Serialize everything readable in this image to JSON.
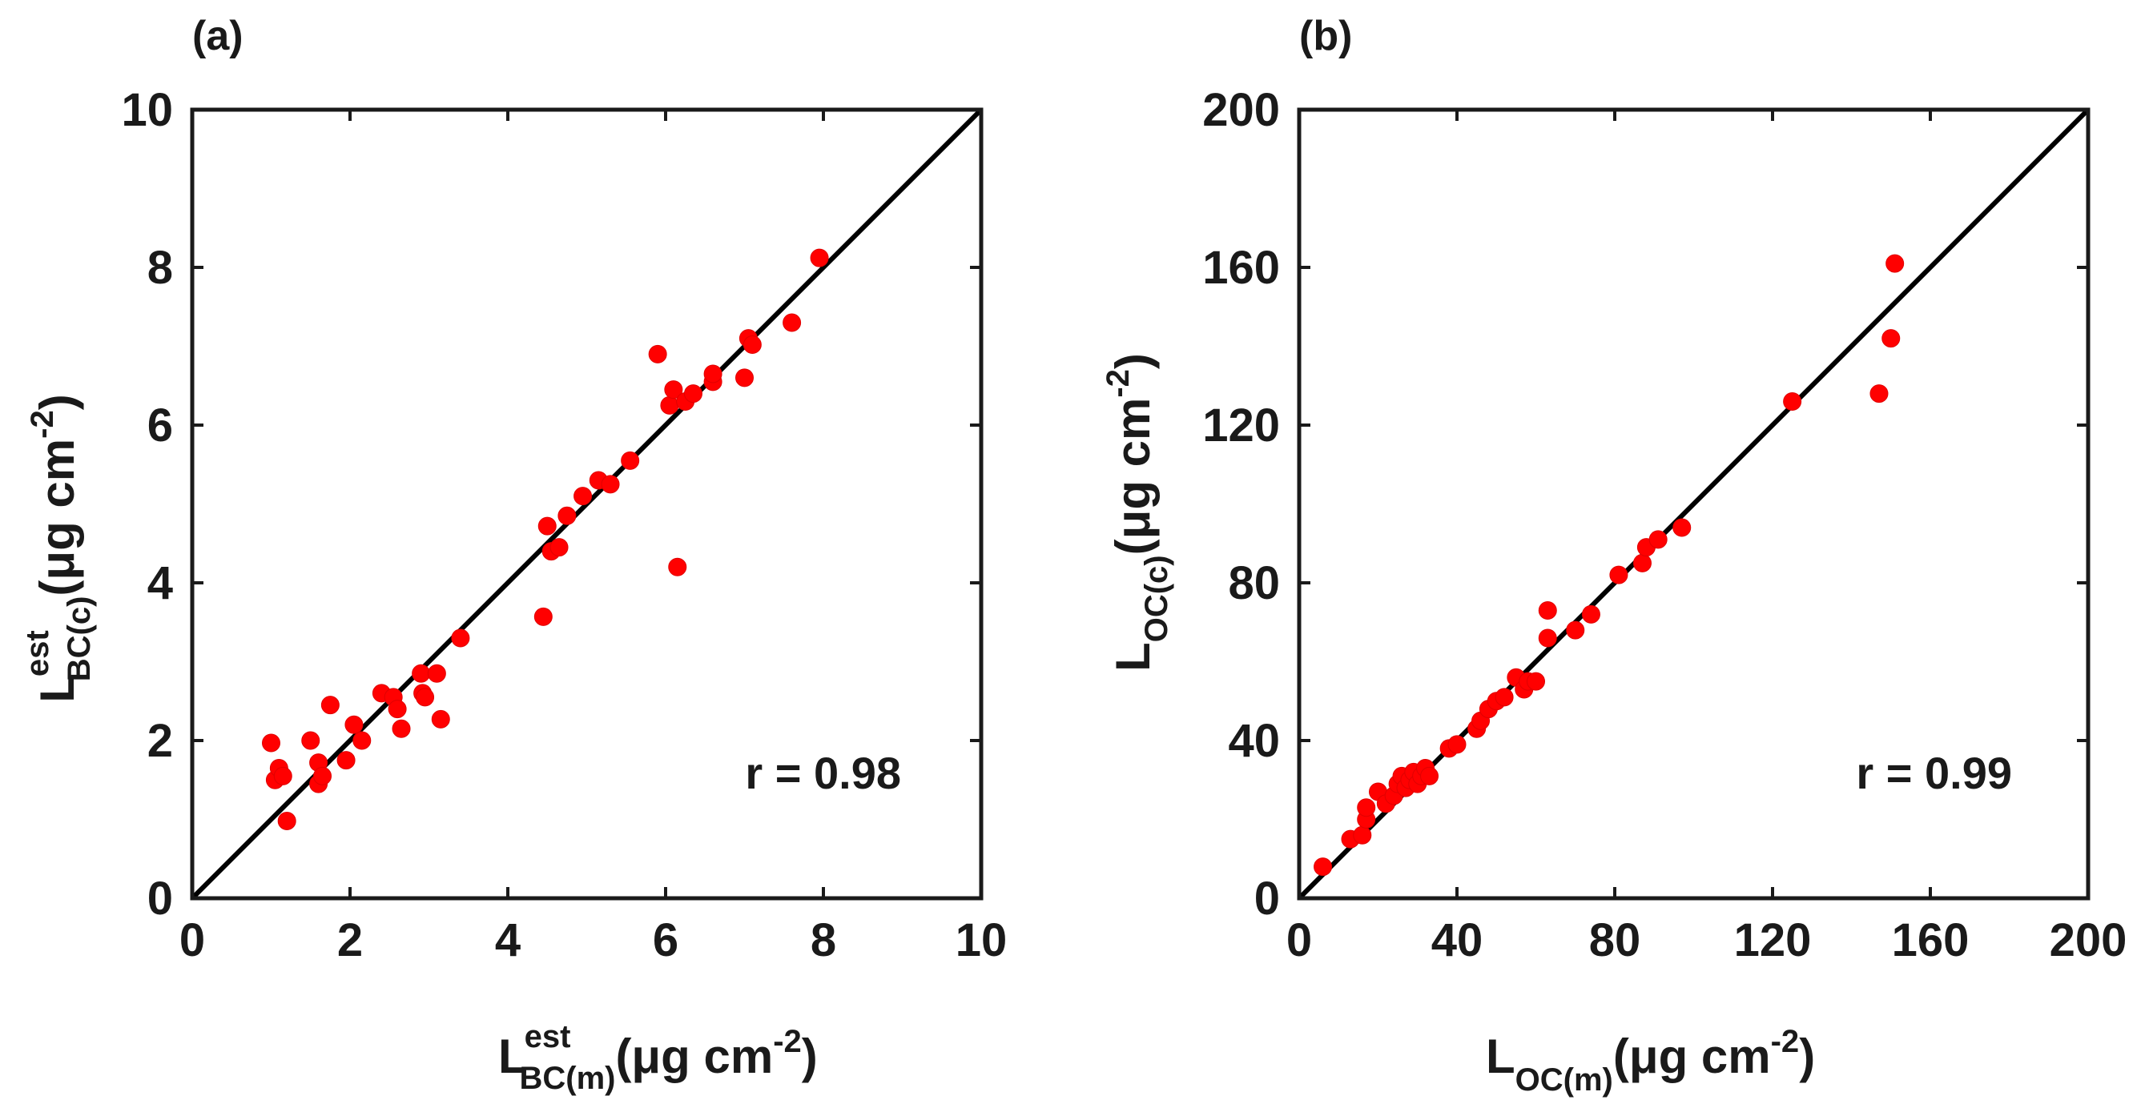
{
  "chart_data": [
    {
      "type": "scatter",
      "panel_label": "(a)",
      "xlabel": {
        "main": "L",
        "sup": "est",
        "sub": "BC(m)",
        "units": "(μg cm",
        "units_sup": "-2",
        "units_close": ")"
      },
      "ylabel": {
        "main": "L",
        "sup": "est",
        "sub": "BC(c)",
        "units": "(μg cm",
        "units_sup": "-2",
        "units_close": ")"
      },
      "xlim": [
        0,
        10
      ],
      "ylim": [
        0,
        10
      ],
      "xticks": [
        0,
        2,
        4,
        6,
        8,
        10
      ],
      "yticks": [
        0,
        2,
        4,
        6,
        8,
        10
      ],
      "xtick_labels": [
        "0",
        "2",
        "4",
        "6",
        "8",
        "10"
      ],
      "ytick_labels": [
        "0",
        "2",
        "4",
        "6",
        "8",
        "10"
      ],
      "annotation": "r = 0.98",
      "reference_line": "1:1",
      "marker_color": "#ff0000",
      "line_color": "#000000",
      "points": [
        [
          1.0,
          1.97
        ],
        [
          1.05,
          1.5
        ],
        [
          1.1,
          1.65
        ],
        [
          1.15,
          1.55
        ],
        [
          1.2,
          0.98
        ],
        [
          1.5,
          2.0
        ],
        [
          1.6,
          1.72
        ],
        [
          1.6,
          1.45
        ],
        [
          1.65,
          1.55
        ],
        [
          1.75,
          2.45
        ],
        [
          1.95,
          1.75
        ],
        [
          2.05,
          2.2
        ],
        [
          2.15,
          2.0
        ],
        [
          2.4,
          2.6
        ],
        [
          2.55,
          2.55
        ],
        [
          2.6,
          2.4
        ],
        [
          2.65,
          2.15
        ],
        [
          2.9,
          2.85
        ],
        [
          2.92,
          2.6
        ],
        [
          2.95,
          2.55
        ],
        [
          3.1,
          2.85
        ],
        [
          3.15,
          2.27
        ],
        [
          3.4,
          3.3
        ],
        [
          4.45,
          3.57
        ],
        [
          4.5,
          4.72
        ],
        [
          4.55,
          4.4
        ],
        [
          4.65,
          4.45
        ],
        [
          4.75,
          4.85
        ],
        [
          4.95,
          5.1
        ],
        [
          5.15,
          5.3
        ],
        [
          5.3,
          5.25
        ],
        [
          5.55,
          5.55
        ],
        [
          5.9,
          6.9
        ],
        [
          6.05,
          6.25
        ],
        [
          6.1,
          6.45
        ],
        [
          6.15,
          4.2
        ],
        [
          6.25,
          6.3
        ],
        [
          6.35,
          6.4
        ],
        [
          6.6,
          6.55
        ],
        [
          6.6,
          6.65
        ],
        [
          7.0,
          6.6
        ],
        [
          7.05,
          7.1
        ],
        [
          7.1,
          7.02
        ],
        [
          7.6,
          7.3
        ],
        [
          7.95,
          8.12
        ]
      ]
    },
    {
      "type": "scatter",
      "panel_label": "(b)",
      "xlabel": {
        "main": "L",
        "sub": "OC(m)",
        "units": "(μg cm",
        "units_sup": "-2",
        "units_close": ")"
      },
      "ylabel": {
        "main": "L",
        "sub": "OC(c)",
        "units": "(μg cm",
        "units_sup": "-2",
        "units_close": ")"
      },
      "xlim": [
        0,
        200
      ],
      "ylim": [
        0,
        200
      ],
      "xticks": [
        0,
        40,
        80,
        120,
        160,
        200
      ],
      "yticks": [
        0,
        40,
        80,
        120,
        160,
        200
      ],
      "xtick_labels": [
        "0",
        "40",
        "80",
        "120",
        "160",
        "200"
      ],
      "ytick_labels": [
        "0",
        "40",
        "80",
        "120",
        "160",
        "200"
      ],
      "annotation": "r = 0.99",
      "reference_line": "1:1",
      "marker_color": "#ff0000",
      "line_color": "#000000",
      "points": [
        [
          6,
          8
        ],
        [
          13,
          15
        ],
        [
          16,
          16
        ],
        [
          17,
          20
        ],
        [
          17,
          23
        ],
        [
          20,
          27
        ],
        [
          22,
          24
        ],
        [
          24,
          26
        ],
        [
          25,
          29
        ],
        [
          26,
          31
        ],
        [
          27,
          28
        ],
        [
          28,
          30
        ],
        [
          29,
          32
        ],
        [
          30,
          29
        ],
        [
          31,
          31
        ],
        [
          32,
          33
        ],
        [
          33,
          31
        ],
        [
          38,
          38
        ],
        [
          40,
          39
        ],
        [
          45,
          43
        ],
        [
          46,
          45
        ],
        [
          48,
          48
        ],
        [
          50,
          50
        ],
        [
          52,
          51
        ],
        [
          55,
          56
        ],
        [
          57,
          53
        ],
        [
          58,
          55
        ],
        [
          60,
          55
        ],
        [
          63,
          66
        ],
        [
          63,
          73
        ],
        [
          70,
          68
        ],
        [
          74,
          72
        ],
        [
          81,
          82
        ],
        [
          87,
          85
        ],
        [
          88,
          89
        ],
        [
          91,
          91
        ],
        [
          97,
          94
        ],
        [
          125,
          126
        ],
        [
          147,
          128
        ],
        [
          150,
          142
        ],
        [
          151,
          161
        ]
      ]
    }
  ]
}
